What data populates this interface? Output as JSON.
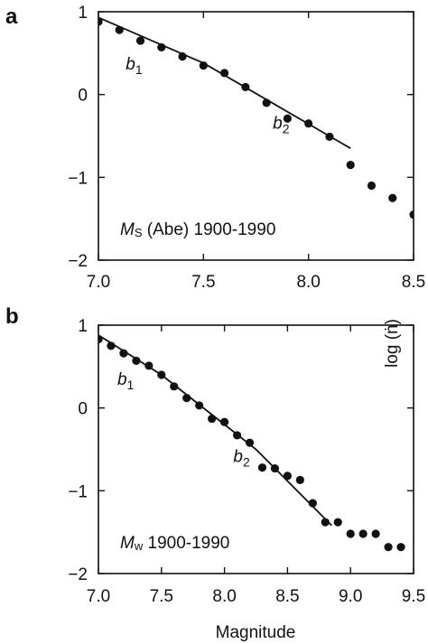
{
  "ylabel": "log (ṅ)",
  "chart_data": [
    {
      "type": "scatter",
      "panel": "a",
      "xlabel": "",
      "ylabel": "log (ṅ)",
      "xlim": [
        7.0,
        8.5
      ],
      "ylim": [
        -2,
        1
      ],
      "x_ticks": [
        7.0,
        7.5,
        8.0,
        8.5
      ],
      "x_tick_labels": [
        "7.0",
        "7.5",
        "8.0",
        "8.5"
      ],
      "y_ticks": [
        1,
        0,
        -1,
        -2
      ],
      "y_tick_labels": [
        "1",
        "0",
        "−1",
        "−2"
      ],
      "annotation": {
        "symbol": "M",
        "subscript": "S",
        "text": " (Abe) 1900-1990"
      },
      "segment_labels": [
        {
          "symbol": "b",
          "subscript": "1",
          "at": [
            7.13,
            0.3
          ]
        },
        {
          "symbol": "b",
          "subscript": "2",
          "at": [
            7.83,
            -0.41
          ]
        }
      ],
      "points": [
        [
          7.0,
          0.88
        ],
        [
          7.1,
          0.78
        ],
        [
          7.2,
          0.65
        ],
        [
          7.3,
          0.57
        ],
        [
          7.4,
          0.46
        ],
        [
          7.5,
          0.35
        ],
        [
          7.6,
          0.26
        ],
        [
          7.7,
          0.09
        ],
        [
          7.8,
          -0.1
        ],
        [
          7.9,
          -0.29
        ],
        [
          8.0,
          -0.35
        ],
        [
          8.1,
          -0.51
        ],
        [
          8.2,
          -0.85
        ],
        [
          8.3,
          -1.1
        ],
        [
          8.4,
          -1.25
        ],
        [
          8.5,
          -1.45
        ]
      ],
      "fit_line": [
        [
          7.0,
          0.93
        ],
        [
          7.5,
          0.38
        ],
        [
          8.2,
          -0.65
        ]
      ]
    },
    {
      "type": "scatter",
      "panel": "b",
      "xlabel": "Magnitude",
      "ylabel": "log (ṅ)",
      "xlim": [
        7.0,
        9.5
      ],
      "ylim": [
        -2,
        1
      ],
      "x_ticks": [
        7.0,
        7.5,
        8.0,
        8.5,
        9.0,
        9.5
      ],
      "x_tick_labels": [
        "7.0",
        "7.5",
        "8.0",
        "8.5",
        "9.0",
        "9.5"
      ],
      "y_ticks": [
        1,
        0,
        -1,
        -2
      ],
      "y_tick_labels": [
        "1",
        "0",
        "−1",
        "−2"
      ],
      "annotation": {
        "symbol": "M",
        "subscript": "w",
        "text": " 1900-1990"
      },
      "segment_labels": [
        {
          "symbol": "b",
          "subscript": "1",
          "at": [
            7.15,
            0.28
          ]
        },
        {
          "symbol": "b",
          "subscript": "2",
          "at": [
            8.07,
            -0.65
          ]
        }
      ],
      "points": [
        [
          7.0,
          0.83
        ],
        [
          7.1,
          0.75
        ],
        [
          7.2,
          0.66
        ],
        [
          7.3,
          0.57
        ],
        [
          7.4,
          0.51
        ],
        [
          7.5,
          0.4
        ],
        [
          7.6,
          0.26
        ],
        [
          7.7,
          0.12
        ],
        [
          7.8,
          0.03
        ],
        [
          7.9,
          -0.13
        ],
        [
          8.0,
          -0.17
        ],
        [
          8.1,
          -0.33
        ],
        [
          8.2,
          -0.42
        ],
        [
          8.3,
          -0.72
        ],
        [
          8.4,
          -0.73
        ],
        [
          8.5,
          -0.82
        ],
        [
          8.6,
          -0.87
        ],
        [
          8.7,
          -1.15
        ],
        [
          8.8,
          -1.38
        ],
        [
          8.9,
          -1.38
        ],
        [
          9.0,
          -1.52
        ],
        [
          9.1,
          -1.52
        ],
        [
          9.2,
          -1.52
        ],
        [
          9.3,
          -1.68
        ],
        [
          9.4,
          -1.68
        ]
      ],
      "fit_line": [
        [
          7.0,
          0.88
        ],
        [
          7.5,
          0.4
        ],
        [
          8.25,
          -0.5
        ],
        [
          8.85,
          -1.42
        ]
      ]
    }
  ]
}
